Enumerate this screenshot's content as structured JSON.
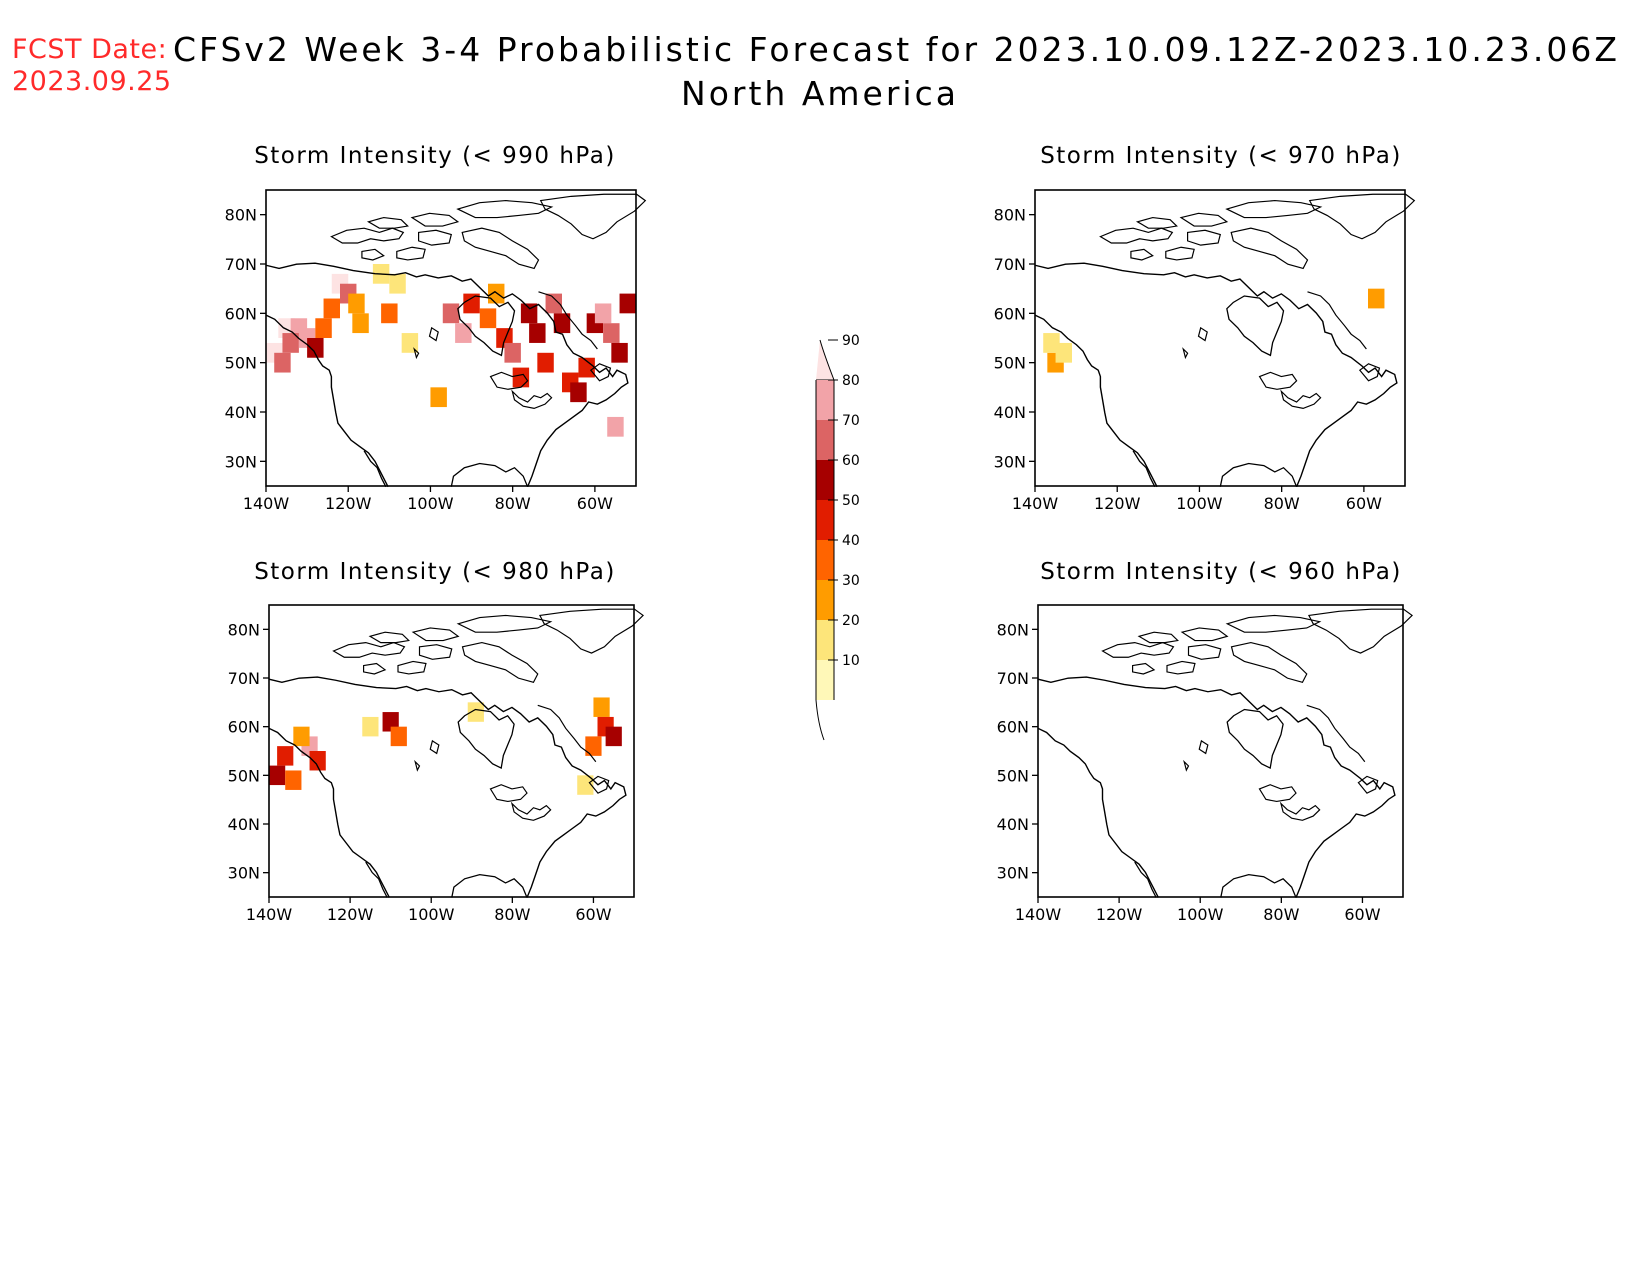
{
  "header": {
    "fcst_label": "FCST Date:",
    "fcst_date": "2023.09.25",
    "title": "CFSv2 Week 3-4 Probabilistic Forecast for 2023.10.09.12Z-2023.10.23.06Z",
    "subtitle": "North America"
  },
  "colors": {
    "title": "#000000",
    "fcst": "#ff2a2a",
    "scale": [
      "#fff8b8",
      "#fde57a",
      "#ff9c00",
      "#ff6400",
      "#e11d00",
      "#a60000",
      "#dc6464",
      "#f2a3a8",
      "#fde3e3"
    ]
  },
  "maps": [
    {
      "title": "Storm Intensity (< 990 hPa)",
      "lat_ticks": [
        "80N",
        "70N",
        "60N",
        "50N",
        "40N",
        "30N"
      ],
      "lon_ticks": [
        "140W",
        "120W",
        "100W",
        "80W",
        "60W"
      ],
      "cells": [
        [
          "135W",
          "57N",
          8
        ],
        [
          "132W",
          "57N",
          7
        ],
        [
          "138W",
          "52N",
          8
        ],
        [
          "136W",
          "50N",
          6
        ],
        [
          "134W",
          "54N",
          6
        ],
        [
          "130W",
          "55N",
          7
        ],
        [
          "128W",
          "53N",
          5
        ],
        [
          "126W",
          "57N",
          3
        ],
        [
          "124W",
          "61N",
          3
        ],
        [
          "122W",
          "66N",
          8
        ],
        [
          "120W",
          "64N",
          6
        ],
        [
          "118W",
          "62N",
          2
        ],
        [
          "117W",
          "58N",
          2
        ],
        [
          "110W",
          "60N",
          3
        ],
        [
          "108W",
          "66N",
          1
        ],
        [
          "112W",
          "68N",
          1
        ],
        [
          "105W",
          "54N",
          1
        ],
        [
          "98W",
          "43N",
          2
        ],
        [
          "95W",
          "60N",
          6
        ],
        [
          "92W",
          "56N",
          7
        ],
        [
          "90W",
          "62N",
          4
        ],
        [
          "86W",
          "59N",
          3
        ],
        [
          "84W",
          "64N",
          2
        ],
        [
          "82W",
          "55N",
          4
        ],
        [
          "80W",
          "52N",
          6
        ],
        [
          "78W",
          "47N",
          4
        ],
        [
          "76W",
          "60N",
          5
        ],
        [
          "74W",
          "56N",
          5
        ],
        [
          "72W",
          "50N",
          4
        ],
        [
          "70W",
          "62N",
          6
        ],
        [
          "68W",
          "58N",
          5
        ],
        [
          "66W",
          "46N",
          4
        ],
        [
          "64W",
          "44N",
          5
        ],
        [
          "62W",
          "49N",
          4
        ],
        [
          "60W",
          "58N",
          5
        ],
        [
          "58W",
          "60N",
          7
        ],
        [
          "56W",
          "56N",
          6
        ],
        [
          "54W",
          "52N",
          5
        ],
        [
          "52W",
          "62N",
          5
        ],
        [
          "55W",
          "37N",
          7
        ]
      ]
    },
    {
      "title": "Storm Intensity (< 970 hPa)",
      "lat_ticks": [
        "80N",
        "70N",
        "60N",
        "50N",
        "40N",
        "30N"
      ],
      "lon_ticks": [
        "140W",
        "120W",
        "100W",
        "80W",
        "60W"
      ],
      "cells": [
        [
          "135W",
          "50N",
          2
        ],
        [
          "136W",
          "54N",
          1
        ],
        [
          "133W",
          "52N",
          1
        ],
        [
          "57W",
          "63N",
          2
        ]
      ]
    },
    {
      "title": "Storm Intensity (< 980 hPa)",
      "lat_ticks": [
        "80N",
        "70N",
        "60N",
        "50N",
        "40N",
        "30N"
      ],
      "lon_ticks": [
        "140W",
        "120W",
        "100W",
        "80W",
        "60W"
      ],
      "cells": [
        [
          "138W",
          "50N",
          5
        ],
        [
          "136W",
          "54N",
          4
        ],
        [
          "134W",
          "49N",
          3
        ],
        [
          "130W",
          "56N",
          7
        ],
        [
          "128W",
          "53N",
          4
        ],
        [
          "132W",
          "58N",
          2
        ],
        [
          "115W",
          "60N",
          1
        ],
        [
          "110W",
          "61N",
          5
        ],
        [
          "108W",
          "58N",
          3
        ],
        [
          "89W",
          "63N",
          1
        ],
        [
          "58W",
          "64N",
          2
        ],
        [
          "57W",
          "60N",
          4
        ],
        [
          "55W",
          "58N",
          5
        ],
        [
          "60W",
          "56N",
          3
        ],
        [
          "62W",
          "48N",
          1
        ]
      ]
    },
    {
      "title": "Storm Intensity (< 960 hPa)",
      "lat_ticks": [
        "80N",
        "70N",
        "60N",
        "50N",
        "40N",
        "30N"
      ],
      "lon_ticks": [
        "140W",
        "120W",
        "100W",
        "80W",
        "60W"
      ],
      "cells": []
    }
  ],
  "colorbar": {
    "labels": [
      "10",
      "20",
      "30",
      "40",
      "50",
      "60",
      "70",
      "80",
      "90"
    ]
  }
}
